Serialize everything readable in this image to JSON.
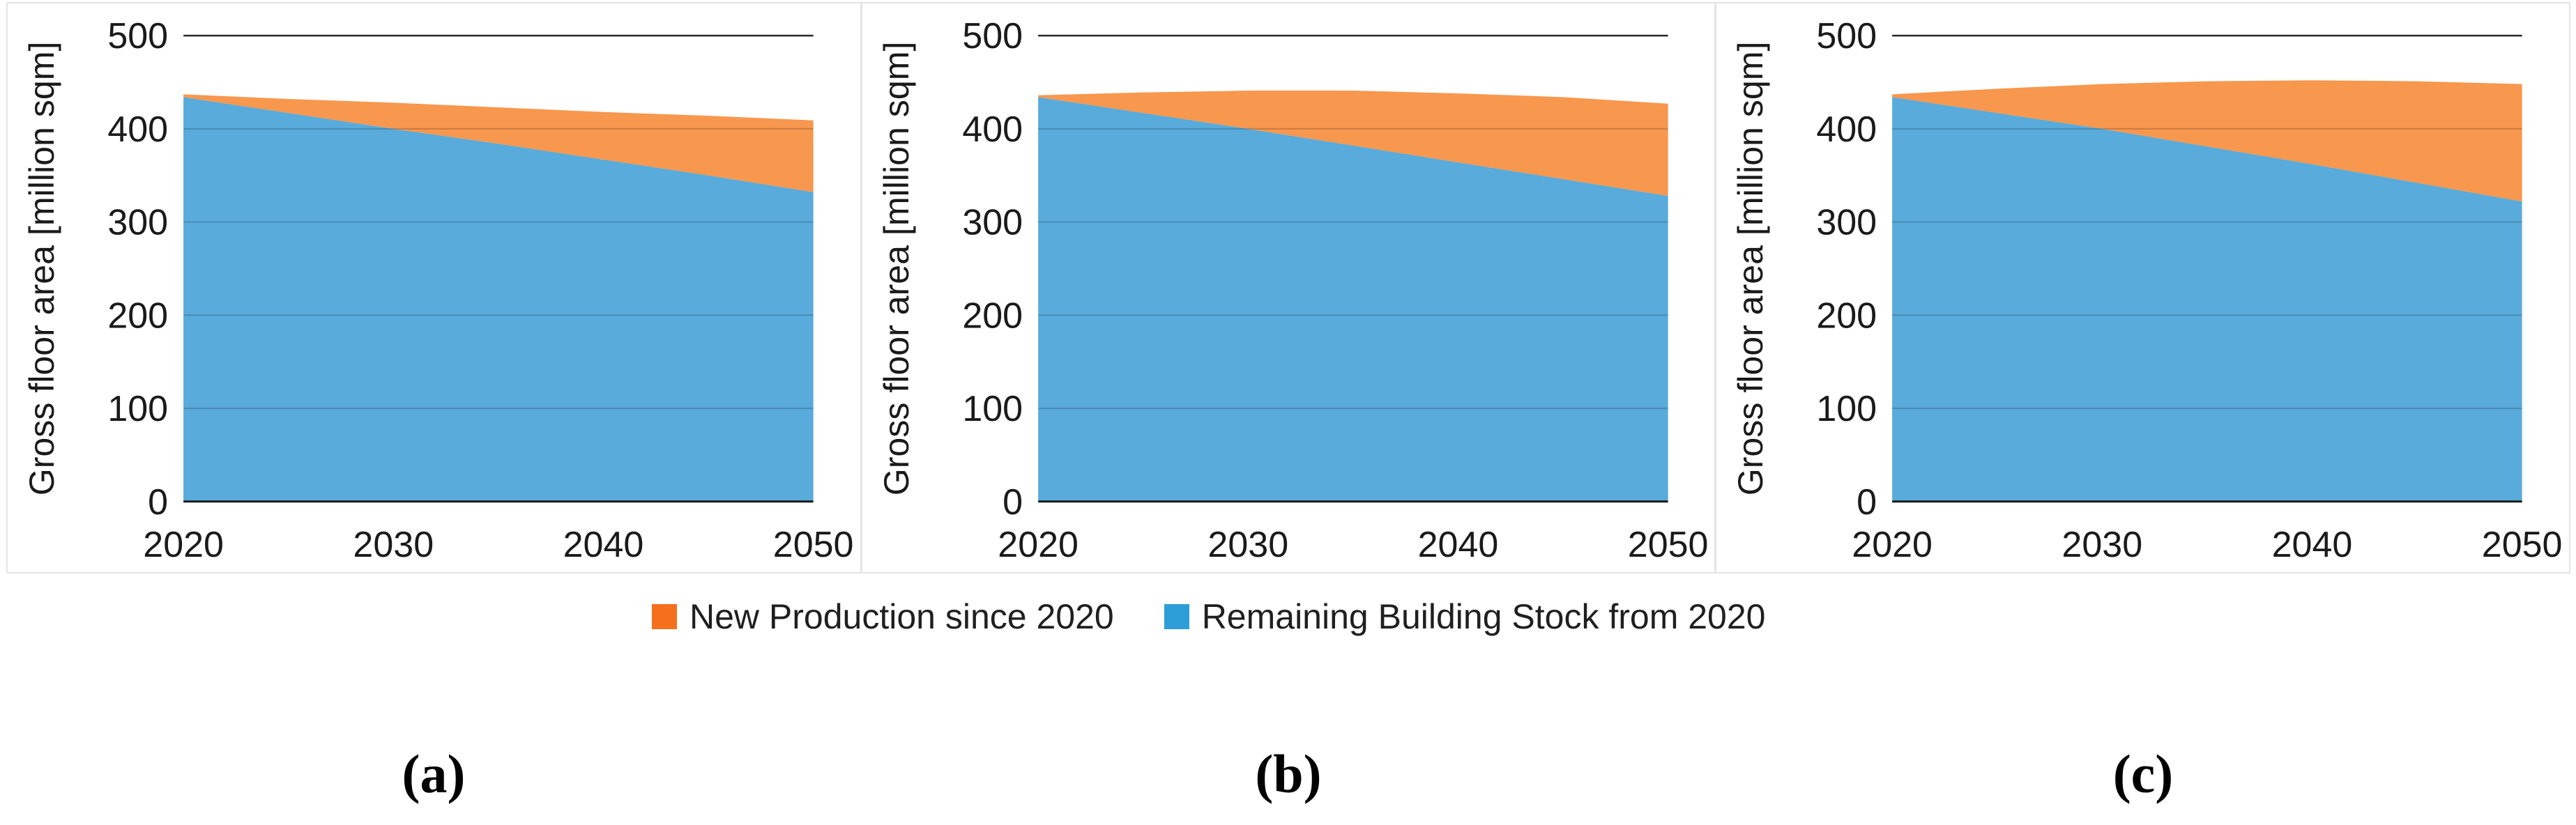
{
  "figure": {
    "background": "#FFFFFF",
    "colors": {
      "area_new": "#F8974E",
      "area_remaining": "#58ABDB",
      "legend_new": "#F4701D",
      "legend_remaining": "#2D9ED8",
      "gridline_overlay": "rgba(0,0,0,0.18)",
      "top_line": "#262626",
      "axis_line": "#1A1A1A",
      "panel_border": "#E4E4E4",
      "text": "#1A1A1A"
    },
    "legend": [
      {
        "label": "New Production since 2020",
        "color": "#F4701D"
      },
      {
        "label": "Remaining Building Stock from 2020",
        "color": "#2D9ED8"
      }
    ],
    "captions": [
      "(a)",
      "(b)",
      "(c)"
    ]
  },
  "chart_data": [
    {
      "id": "a",
      "type": "area",
      "stacked": true,
      "ylabel": "Gross floor area [million sqm]",
      "xlabel": "",
      "x": [
        2020,
        2025,
        2030,
        2035,
        2040,
        2045,
        2050
      ],
      "series": [
        {
          "name": "Remaining Building Stock from 2020",
          "values": [
            434,
            417,
            400,
            384,
            367,
            350,
            332
          ]
        },
        {
          "name": "New Production since 2020",
          "values": [
            3,
            15,
            28,
            39,
            51,
            64,
            77
          ]
        }
      ],
      "totals": [
        437,
        432,
        428,
        423,
        418,
        414,
        409
      ],
      "xlim": [
        2020,
        2050
      ],
      "ylim": [
        0,
        500
      ],
      "xticks": [
        2020,
        2030,
        2040,
        2050
      ],
      "yticks": [
        0,
        100,
        200,
        300,
        400,
        500
      ],
      "grid": true,
      "legend_position": "shared-bottom"
    },
    {
      "id": "b",
      "type": "area",
      "stacked": true,
      "ylabel": "Gross floor area [million sqm]",
      "xlabel": "",
      "x": [
        2020,
        2025,
        2030,
        2035,
        2040,
        2045,
        2050
      ],
      "series": [
        {
          "name": "Remaining Building Stock from 2020",
          "values": [
            434,
            417,
            400,
            382,
            364,
            346,
            328
          ]
        },
        {
          "name": "New Production since 2020",
          "values": [
            2,
            22,
            41,
            59,
            74,
            88,
            99
          ]
        }
      ],
      "totals": [
        436,
        439,
        441,
        441,
        438,
        434,
        427
      ],
      "xlim": [
        2020,
        2050
      ],
      "ylim": [
        0,
        500
      ],
      "xticks": [
        2020,
        2030,
        2040,
        2050
      ],
      "yticks": [
        0,
        100,
        200,
        300,
        400,
        500
      ],
      "grid": true,
      "legend_position": "shared-bottom"
    },
    {
      "id": "c",
      "type": "area",
      "stacked": true,
      "ylabel": "Gross floor area [million sqm]",
      "xlabel": "",
      "x": [
        2020,
        2025,
        2030,
        2035,
        2040,
        2045,
        2050
      ],
      "series": [
        {
          "name": "Remaining Building Stock from 2020",
          "values": [
            434,
            417,
            400,
            381,
            362,
            342,
            322
          ]
        },
        {
          "name": "New Production since 2020",
          "values": [
            3,
            26,
            48,
            70,
            90,
            109,
            126
          ]
        }
      ],
      "totals": [
        437,
        443,
        448,
        451,
        452,
        451,
        448
      ],
      "xlim": [
        2020,
        2050
      ],
      "ylim": [
        0,
        500
      ],
      "xticks": [
        2020,
        2030,
        2040,
        2050
      ],
      "yticks": [
        0,
        100,
        200,
        300,
        400,
        500
      ],
      "grid": true,
      "legend_position": "shared-bottom"
    }
  ]
}
